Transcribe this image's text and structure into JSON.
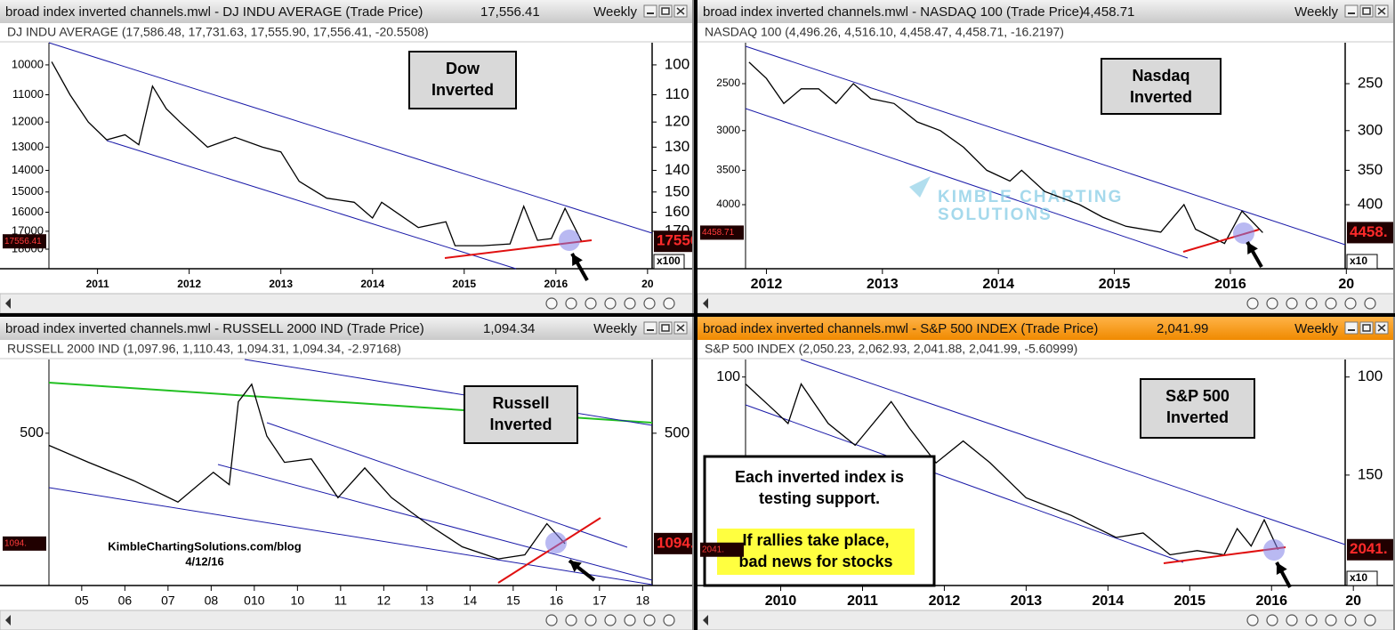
{
  "chart_data": [
    {
      "type": "line",
      "window_title": "broad index inverted channels.mwl - DJ INDU AVERAGE (Trade Price)",
      "last_price": "17,556.41",
      "period": "Weekly",
      "quote": "DJ INDU AVERAGE (17,586.48, 17,731.63, 17,555.90, 17,556.41, -20.5508)",
      "note_box": [
        "Dow",
        "Inverted"
      ],
      "price_tag_left": "17556.41",
      "price_tag_right": "17556",
      "scale_note": "x100",
      "log": true,
      "inverted": true,
      "color": "#000000",
      "active": false,
      "x": [
        2010.5,
        2010.7,
        2010.9,
        2011.1,
        2011.3,
        2011.45,
        2011.6,
        2011.75,
        2011.9,
        2012.2,
        2012.5,
        2012.8,
        2013.0,
        2013.2,
        2013.5,
        2013.8,
        2014.0,
        2014.1,
        2014.5,
        2014.8,
        2014.9,
        2015.2,
        2015.5,
        2015.65,
        2015.8,
        2015.95,
        2016.1,
        2016.28
      ],
      "values": [
        9900,
        11000,
        12000,
        12700,
        12500,
        12900,
        10700,
        11500,
        12000,
        13000,
        12600,
        13000,
        13200,
        14500,
        15300,
        15500,
        16300,
        15500,
        16800,
        16500,
        17800,
        17800,
        17700,
        15700,
        17500,
        17400,
        15800,
        17556.41
      ],
      "xlim": [
        2010.47,
        2017.05
      ],
      "ylim": [
        9370,
        19160
      ],
      "xticks": [
        2011,
        2012,
        2013,
        2014,
        2015,
        2016,
        {
          "value": 2017,
          "label": "20"
        }
      ],
      "yticks": [
        10000,
        11000,
        12000,
        13000,
        14000,
        15000,
        16000,
        17000,
        18000
      ],
      "y2ticks": [
        {
          "value": 10000,
          "label": "100"
        },
        {
          "value": 11000,
          "label": "110"
        },
        {
          "value": 12000,
          "label": "120"
        },
        {
          "value": 13000,
          "label": "130"
        },
        {
          "value": 14000,
          "label": "140"
        },
        {
          "value": 15000,
          "label": "150"
        },
        {
          "value": 16000,
          "label": "160"
        },
        {
          "value": 17000,
          "label": "170"
        }
      ]
    },
    {
      "type": "line",
      "window_title": "broad index inverted channels.mwl - NASDAQ 100 (Trade Price)",
      "last_price": "4,458.71",
      "period": "Weekly",
      "quote": "NASDAQ 100 (4,496.26, 4,516.10, 4,458.47, 4,458.71, -16.2197)",
      "note_box": [
        "Nasdaq",
        "Inverted"
      ],
      "price_tag_left": "4458.71",
      "price_tag_right": "4458.",
      "scale_note": "x10",
      "watermark": [
        "KIMBLE CHARTING",
        "SOLUTIONS"
      ],
      "log": true,
      "inverted": true,
      "color": "#000000",
      "active": false,
      "x": [
        2011.85,
        2012.0,
        2012.15,
        2012.3,
        2012.45,
        2012.6,
        2012.75,
        2012.9,
        2013.1,
        2013.3,
        2013.5,
        2013.7,
        2013.9,
        2014.1,
        2014.2,
        2014.4,
        2014.7,
        2014.9,
        2015.1,
        2015.4,
        2015.6,
        2015.7,
        2015.95,
        2016.1,
        2016.28
      ],
      "values": [
        2300,
        2450,
        2700,
        2550,
        2550,
        2700,
        2500,
        2650,
        2700,
        2900,
        3000,
        3200,
        3500,
        3650,
        3500,
        3800,
        4000,
        4200,
        4350,
        4450,
        4000,
        4400,
        4650,
        4100,
        4458.71
      ],
      "xlim": [
        2011.82,
        2016.99
      ],
      "ylim": [
        2147,
        5130
      ],
      "xticks": [
        2012,
        2013,
        2014,
        2015,
        2016,
        {
          "value": 2017,
          "label": "20"
        }
      ],
      "yticks": [
        2500,
        3000,
        3500,
        4000
      ],
      "y2ticks": [
        {
          "value": 2500,
          "label": "250"
        },
        {
          "value": 3000,
          "label": "300"
        },
        {
          "value": 3500,
          "label": "350"
        },
        {
          "value": 4000,
          "label": "400"
        }
      ]
    },
    {
      "type": "line",
      "window_title": "broad index inverted channels.mwl - RUSSELL 2000 IND (Trade Price)",
      "last_price": "1,094.34",
      "period": "Weekly",
      "quote": "RUSSELL 2000 IND (1,097.96, 1,110.43, 1,094.31, 1,094.34, -2.97168)",
      "note_box": [
        "Russell",
        "Inverted"
      ],
      "price_tag_left": "1094.",
      "price_tag_right": "1094.",
      "source": [
        "KimbleChartingSolutions.com/blog",
        "4/12/16"
      ],
      "log": true,
      "inverted": true,
      "color": "#000000",
      "active": false,
      "x": [
        2004.24,
        2005.16,
        2006.2,
        2007.23,
        2008.05,
        2008.42,
        2008.63,
        2008.94,
        2009.29,
        2009.7,
        2010.32,
        2010.94,
        2011.56,
        2012.18,
        2013.0,
        2013.82,
        2014.65,
        2015.27,
        2015.78,
        2016.2
      ],
      "values": [
        545,
        615,
        700,
        815,
        660,
        720,
        400,
        353,
        510,
        615,
        600,
        790,
        640,
        790,
        950,
        1120,
        1220,
        1185,
        950,
        1094.34
      ],
      "xlim": [
        2004.24,
        2018.22
      ],
      "ylim": [
        300,
        1474
      ],
      "xticks": [
        {
          "value": 2005,
          "label": "05"
        },
        {
          "value": 2006,
          "label": "06"
        },
        {
          "value": 2007,
          "label": "07"
        },
        {
          "value": 2008,
          "label": "08"
        },
        {
          "value": 2009,
          "label": "010"
        },
        {
          "value": 2010,
          "label": "10"
        },
        {
          "value": 2011,
          "label": "11"
        },
        {
          "value": 2012,
          "label": "12"
        },
        {
          "value": 2013,
          "label": "13"
        },
        {
          "value": 2014,
          "label": "14"
        },
        {
          "value": 2015,
          "label": "15"
        },
        {
          "value": 2016,
          "label": "16"
        },
        {
          "value": 2017,
          "label": "17"
        },
        {
          "value": 2018,
          "label": "18"
        }
      ],
      "yticks": [
        500
      ],
      "y2ticks": [
        500
      ]
    },
    {
      "type": "line",
      "window_title": "broad index inverted channels.mwl - S&P 500 INDEX (Trade Price)",
      "last_price": "2,041.99",
      "period": "Weekly",
      "quote": "S&P 500 INDEX (2,050.23, 2,062.93, 2,041.88, 2,041.99, -5.60999)",
      "note_box": [
        "S&P 500",
        "Inverted"
      ],
      "price_tag_left": "2041.",
      "price_tag_right": "2041.",
      "scale_note": "x10",
      "annotation": [
        "Each inverted index is",
        "testing support."
      ],
      "highlight": [
        "If rallies take place,",
        "bad news for stocks"
      ],
      "log": true,
      "inverted": true,
      "color": "#000000",
      "active": true,
      "x": [
        2009.57,
        2009.92,
        2010.09,
        2010.25,
        2010.58,
        2010.91,
        2011.35,
        2011.57,
        2011.9,
        2012.23,
        2012.56,
        2013.0,
        2013.55,
        2014.1,
        2014.43,
        2014.76,
        2015.09,
        2015.42,
        2015.58,
        2015.75,
        2015.91,
        2016.08
      ],
      "values": [
        1029,
        1148,
        1212,
        1029,
        1212,
        1326,
        1107,
        1234,
        1426,
        1303,
        1426,
        1648,
        1772,
        1941,
        1906,
        2086,
        2050,
        2086,
        1872,
        2012,
        1805,
        2041.99
      ],
      "xlim": [
        2009.57,
        2016.9
      ],
      "ylim": [
        937,
        2368
      ],
      "xticks": [
        2010,
        2011,
        2012,
        2013,
        2014,
        2015,
        2016,
        {
          "value": 2017,
          "label": "20"
        }
      ],
      "yticks": [
        {
          "value": 1000,
          "label": "100"
        },
        {
          "value": 1500,
          "label": "150"
        }
      ],
      "y2ticks": [
        {
          "value": 1000,
          "label": "100"
        },
        {
          "value": 1500,
          "label": "150"
        }
      ]
    }
  ]
}
